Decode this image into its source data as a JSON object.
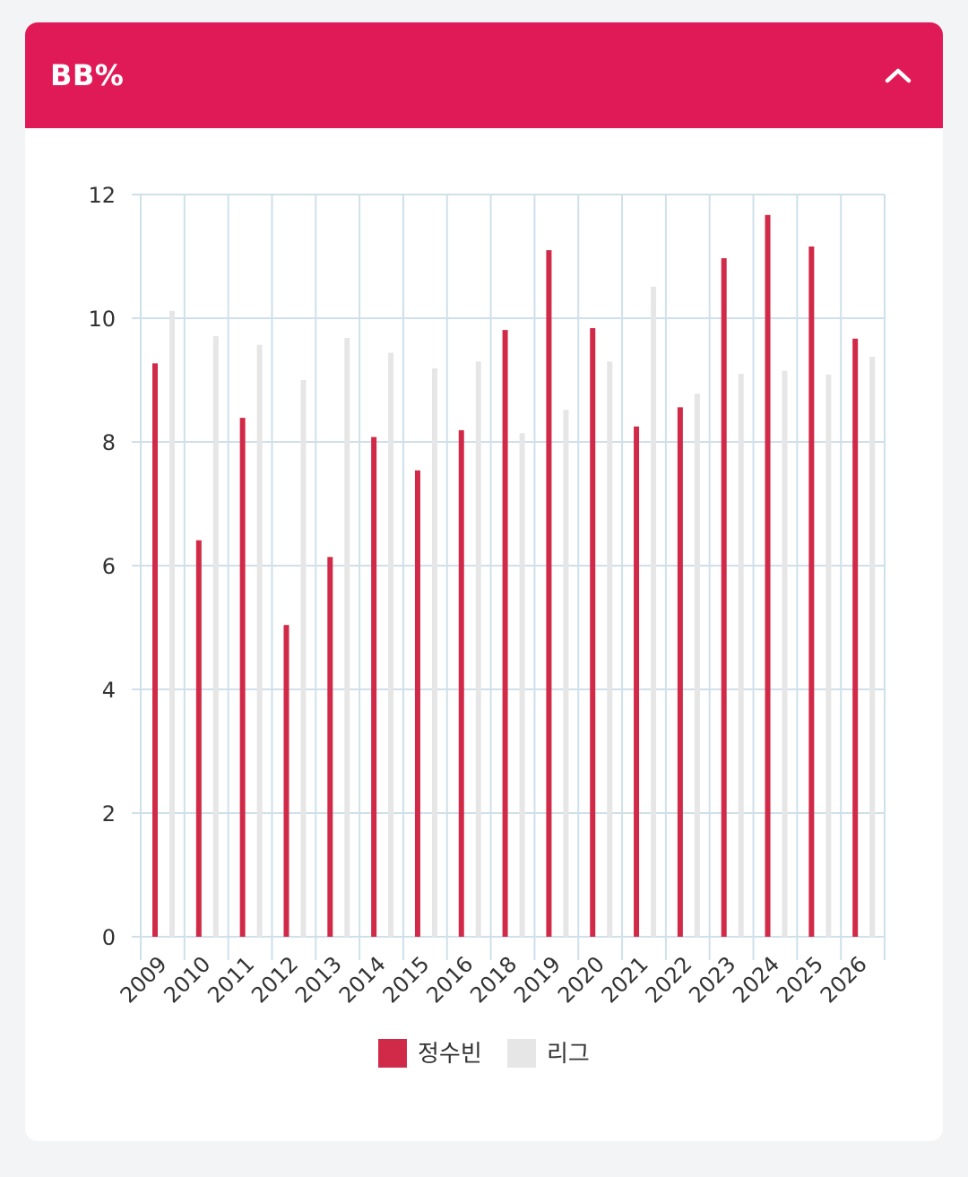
{
  "header": {
    "title": "BB%",
    "collapse_icon": "chevron-up-icon"
  },
  "colors": {
    "header_bg": "#e01a57",
    "player": "#d12a48",
    "league": "#e6e6e6",
    "grid": "#cfe0ea"
  },
  "chart_data": {
    "type": "bar",
    "title": "",
    "xlabel": "",
    "ylabel": "",
    "ylim": [
      0,
      12
    ],
    "yticks": [
      0,
      2,
      4,
      6,
      8,
      10,
      12
    ],
    "grid": true,
    "legend_position": "bottom",
    "categories": [
      "2009",
      "2010",
      "2011",
      "2012",
      "2013",
      "2014",
      "2015",
      "2016",
      "2018",
      "2019",
      "2020",
      "2021",
      "2022",
      "2023",
      "2024",
      "2025",
      "2026"
    ],
    "series": [
      {
        "name": "정수빈",
        "color": "#d12a48",
        "values": [
          9.27,
          6.41,
          8.39,
          5.04,
          6.14,
          8.08,
          7.54,
          8.19,
          9.81,
          11.1,
          9.84,
          8.25,
          8.56,
          10.97,
          11.67,
          11.16,
          9.67
        ]
      },
      {
        "name": "리그",
        "color": "#e6e6e6",
        "values": [
          10.12,
          9.71,
          9.57,
          9.0,
          9.68,
          9.44,
          9.19,
          9.3,
          8.14,
          8.52,
          9.3,
          10.51,
          8.78,
          9.1,
          9.15,
          9.09,
          9.38
        ]
      }
    ]
  }
}
